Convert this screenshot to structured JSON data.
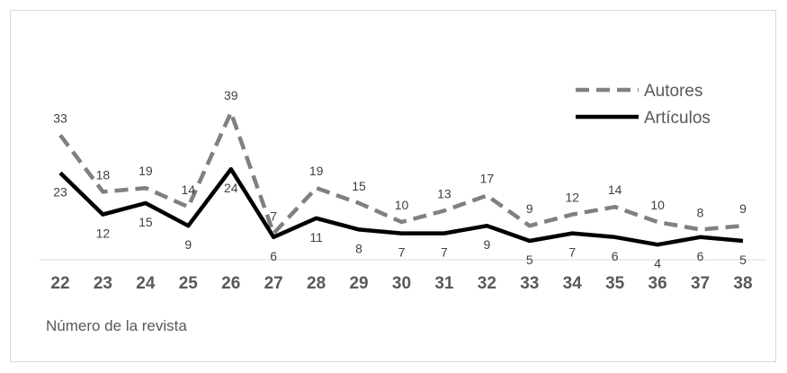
{
  "chart_data": {
    "type": "line",
    "categories": [
      "22",
      "23",
      "24",
      "25",
      "26",
      "27",
      "28",
      "29",
      "30",
      "31",
      "32",
      "33",
      "34",
      "35",
      "36",
      "37",
      "38"
    ],
    "series": [
      {
        "name": "Autores",
        "values": [
          33,
          18,
          19,
          14,
          39,
          7,
          19,
          15,
          10,
          13,
          17,
          9,
          12,
          14,
          10,
          8,
          9
        ],
        "color": "#808080",
        "style": "dashed"
      },
      {
        "name": "Artículos",
        "values": [
          23,
          12,
          15,
          9,
          24,
          6,
          11,
          8,
          7,
          7,
          9,
          5,
          7,
          6,
          4,
          6,
          5
        ],
        "color": "#000000",
        "style": "solid"
      }
    ],
    "xlabel": "Número de la revista",
    "ylabel": "",
    "ylim": [
      0,
      41
    ],
    "legend_position": "top-right",
    "grid": false
  }
}
